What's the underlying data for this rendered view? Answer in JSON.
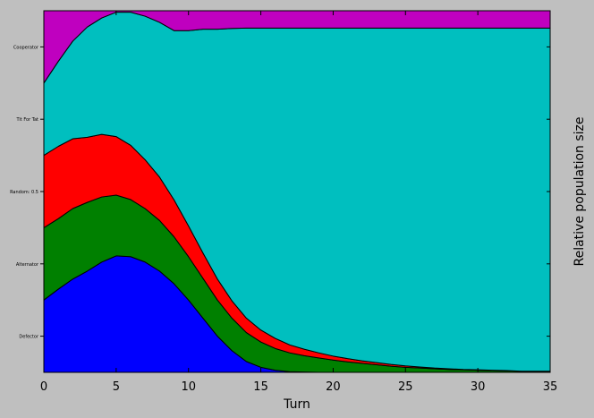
{
  "chart_data": {
    "type": "area",
    "title": "",
    "xlabel": "Turn",
    "ylabel": "Relative population size",
    "xlim": [
      0,
      35
    ],
    "ylim": [
      0,
      1
    ],
    "xticks": [
      0,
      5,
      10,
      15,
      20,
      25,
      30,
      35
    ],
    "ytick_labels": [
      "Defector",
      "Alternator",
      "Random: 0.5",
      "Tit For Tat",
      "Cooperator"
    ],
    "ytick_positions": [
      0.1,
      0.3,
      0.5,
      0.7,
      0.9
    ],
    "grid": false,
    "x": [
      0,
      1,
      2,
      3,
      4,
      5,
      6,
      7,
      8,
      9,
      10,
      11,
      12,
      13,
      14,
      15,
      16,
      17,
      18,
      19,
      20,
      21,
      22,
      23,
      24,
      25,
      26,
      27,
      28,
      29,
      30,
      31,
      32,
      33,
      34,
      35
    ],
    "series": [
      {
        "name": "Defector",
        "color": "#0000ff",
        "values": [
          0.2,
          0.23,
          0.258,
          0.28,
          0.305,
          0.322,
          0.32,
          0.305,
          0.28,
          0.245,
          0.2,
          0.15,
          0.1,
          0.06,
          0.03,
          0.014,
          0.006,
          0.002,
          0.001,
          0,
          0,
          0,
          0,
          0,
          0,
          0,
          0,
          0,
          0,
          0,
          0,
          0,
          0,
          0,
          0,
          0
        ]
      },
      {
        "name": "Alternator",
        "color": "#008000",
        "values": [
          0.2,
          0.195,
          0.195,
          0.19,
          0.18,
          0.168,
          0.158,
          0.148,
          0.14,
          0.13,
          0.12,
          0.11,
          0.1,
          0.09,
          0.08,
          0.07,
          0.06,
          0.052,
          0.045,
          0.04,
          0.034,
          0.029,
          0.025,
          0.021,
          0.017,
          0.014,
          0.012,
          0.01,
          0.008,
          0.007,
          0.006,
          0.005,
          0.004,
          0.003,
          0.003,
          0.003
        ]
      },
      {
        "name": "Random: 0.5",
        "color": "#ff0000",
        "values": [
          0.2,
          0.2,
          0.193,
          0.18,
          0.173,
          0.162,
          0.15,
          0.135,
          0.12,
          0.102,
          0.085,
          0.07,
          0.058,
          0.048,
          0.04,
          0.033,
          0.028,
          0.022,
          0.018,
          0.014,
          0.011,
          0.009,
          0.007,
          0.006,
          0.005,
          0.004,
          0.003,
          0.002,
          0.002,
          0.001,
          0.001,
          0.001,
          0.001,
          0,
          0,
          0
        ]
      },
      {
        "name": "Tit For Tat",
        "color": "#00bfbf",
        "values": [
          0.2,
          0.235,
          0.27,
          0.305,
          0.322,
          0.344,
          0.368,
          0.397,
          0.428,
          0.468,
          0.54,
          0.619,
          0.691,
          0.753,
          0.802,
          0.835,
          0.858,
          0.876,
          0.888,
          0.898,
          0.907,
          0.914,
          0.92,
          0.925,
          0.93,
          0.934,
          0.937,
          0.94,
          0.942,
          0.944,
          0.945,
          0.946,
          0.947,
          0.949,
          0.949,
          0.949
        ]
      },
      {
        "name": "Cooperator",
        "color": "#bf00bf",
        "values": [
          0.2,
          0.14,
          0.084,
          0.045,
          0.02,
          0.004,
          0.004,
          0.015,
          0.032,
          0.055,
          0.055,
          0.051,
          0.051,
          0.049,
          0.048,
          0.048,
          0.048,
          0.048,
          0.048,
          0.048,
          0.048,
          0.048,
          0.048,
          0.048,
          0.048,
          0.048,
          0.048,
          0.048,
          0.048,
          0.048,
          0.048,
          0.048,
          0.048,
          0.048,
          0.048,
          0.048
        ]
      }
    ]
  }
}
